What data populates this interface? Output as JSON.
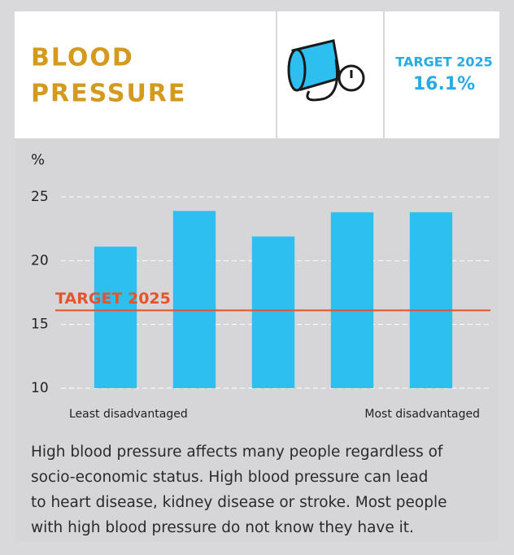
{
  "chart_data": {
    "type": "bar",
    "title_lines": [
      "BLOOD",
      "PRESSURE"
    ],
    "y_label": "%",
    "categories": [
      "Least disadvantaged",
      null,
      null,
      null,
      "Most disadvantaged"
    ],
    "values": [
      21.1,
      23.9,
      21.9,
      23.8,
      23.8
    ],
    "color": "#2cbff0",
    "ylim": [
      10,
      25
    ],
    "yticks": [
      10,
      15,
      20,
      25
    ],
    "grid": true,
    "target": {
      "label": "TARGET 2025",
      "value": 16.1,
      "value_label": "16.1%",
      "color": "#e8532b"
    },
    "description_lines": [
      "High blood pressure affects many people regardless of",
      "socio-economic status. High blood pressure can lead",
      "to heart disease, kidney disease or stroke. Most people",
      "with high blood pressure do not know they have it."
    ]
  }
}
